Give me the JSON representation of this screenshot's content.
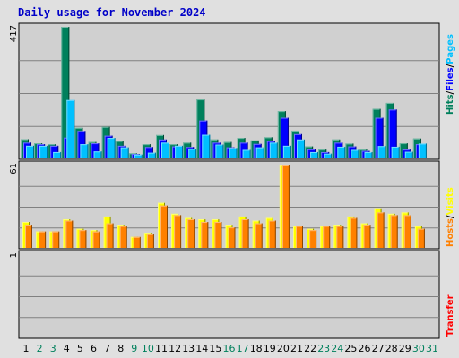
{
  "title": "Daily usage for November 2024",
  "colors": {
    "hits": "#00805c",
    "files": "#0000ff",
    "pages": "#00c0ff",
    "visits": "#ffff00",
    "hosts": "#ff8000",
    "kbytes": "#ff0000",
    "weekend_label": "#00805c",
    "weekday_label": "#000000",
    "background": "#e0e0e0",
    "plot_background": "#d0d0d0"
  },
  "panel_labels": {
    "top": [
      "Hits",
      "Files",
      "Pages"
    ],
    "middle": [
      "Hosts",
      "Visits"
    ],
    "bottom": [
      "Transfer"
    ]
  },
  "chart_data": [
    {
      "type": "bar",
      "panel": "top",
      "y_max_label": "417",
      "ylim": [
        0,
        417
      ],
      "categories": [
        "1",
        "2",
        "3",
        "4",
        "5",
        "6",
        "7",
        "8",
        "9",
        "10",
        "11",
        "12",
        "13",
        "14",
        "15",
        "16",
        "17",
        "18",
        "19",
        "20",
        "21",
        "22",
        "23",
        "24",
        "25",
        "26",
        "27",
        "28",
        "29",
        "30",
        "31"
      ],
      "weekend_days": [
        "2",
        "3",
        "9",
        "10",
        "16",
        "17",
        "23",
        "24",
        "30",
        "31"
      ],
      "series": [
        {
          "name": "Hits",
          "values": [
            61,
            48,
            45,
            417,
            97,
            52,
            100,
            55,
            16,
            45,
            74,
            45,
            50,
            187,
            60,
            52,
            65,
            57,
            67,
            150,
            88,
            38,
            28,
            60,
            47,
            28,
            157,
            176,
            48,
            63,
            0
          ]
        },
        {
          "name": "Files",
          "values": [
            50,
            45,
            40,
            66,
            87,
            48,
            72,
            40,
            14,
            36,
            60,
            38,
            36,
            120,
            50,
            35,
            50,
            46,
            55,
            129,
            77,
            29,
            20,
            50,
            38,
            24,
            129,
            155,
            28,
            45,
            0
          ]
        },
        {
          "name": "Pages",
          "values": [
            40,
            40,
            20,
            185,
            45,
            22,
            65,
            35,
            12,
            18,
            50,
            40,
            30,
            75,
            44,
            33,
            27,
            35,
            50,
            40,
            60,
            20,
            15,
            37,
            27,
            20,
            39,
            37,
            21,
            47,
            0
          ]
        }
      ]
    },
    {
      "type": "bar",
      "panel": "middle",
      "y_max_label": "61",
      "ylim": [
        0,
        61
      ],
      "categories": [
        "1",
        "2",
        "3",
        "4",
        "5",
        "6",
        "7",
        "8",
        "9",
        "10",
        "11",
        "12",
        "13",
        "14",
        "15",
        "16",
        "17",
        "18",
        "19",
        "20",
        "21",
        "22",
        "23",
        "24",
        "25",
        "26",
        "27",
        "28",
        "29",
        "30",
        "31"
      ],
      "series": [
        {
          "name": "Visits",
          "values": [
            19,
            12,
            12,
            21,
            14,
            13,
            23,
            17,
            8,
            11,
            33,
            25,
            22,
            21,
            21,
            17,
            23,
            20,
            22,
            61,
            16,
            14,
            16,
            17,
            23,
            18,
            29,
            25,
            26,
            16,
            0
          ]
        },
        {
          "name": "Hosts",
          "values": [
            17,
            12,
            12,
            20,
            13,
            12,
            18,
            16,
            8,
            10,
            31,
            24,
            21,
            19,
            19,
            15,
            21,
            18,
            20,
            61,
            16,
            13,
            16,
            16,
            22,
            17,
            26,
            24,
            24,
            14,
            0
          ]
        }
      ]
    },
    {
      "type": "bar",
      "panel": "bottom",
      "y_max_label": "1",
      "ylim": [
        0,
        1
      ],
      "categories": [
        "1",
        "2",
        "3",
        "4",
        "5",
        "6",
        "7",
        "8",
        "9",
        "10",
        "11",
        "12",
        "13",
        "14",
        "15",
        "16",
        "17",
        "18",
        "19",
        "20",
        "21",
        "22",
        "23",
        "24",
        "25",
        "26",
        "27",
        "28",
        "29",
        "30",
        "31"
      ],
      "series": [
        {
          "name": "Transfer",
          "values": [
            0,
            0,
            0,
            0,
            0,
            0,
            0,
            0,
            0,
            0,
            0,
            0,
            0,
            0,
            0,
            0,
            0,
            0,
            0,
            0,
            0,
            0,
            0,
            0,
            0,
            0,
            0,
            0,
            0,
            0,
            0
          ]
        }
      ]
    }
  ]
}
